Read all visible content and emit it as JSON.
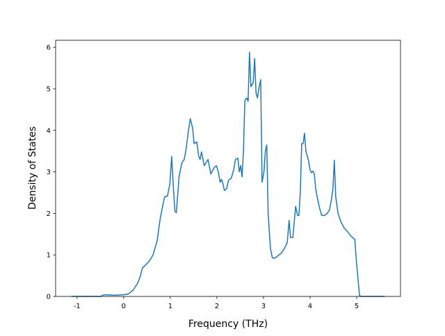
{
  "chart_data": {
    "type": "line",
    "xlabel": "Frequency (THz)",
    "ylabel": "Density of States",
    "xlim": [
      -1.46,
      5.94
    ],
    "ylim": [
      0,
      6.17
    ],
    "xticks": [
      -1,
      0,
      1,
      2,
      3,
      4,
      5
    ],
    "yticks": [
      0,
      1,
      2,
      3,
      4,
      5,
      6
    ],
    "grid": false,
    "series": [
      {
        "name": "DOS",
        "color": "#1f77b4",
        "x": [
          -1.12,
          -0.5,
          -0.42,
          -0.2,
          0,
          0.1,
          0.2,
          0.3,
          0.36,
          0.4,
          0.48,
          0.55,
          0.63,
          0.72,
          0.78,
          0.84,
          0.88,
          0.94,
          0.99,
          1.03,
          1.07,
          1.1,
          1.13,
          1.19,
          1.25,
          1.3,
          1.34,
          1.39,
          1.43,
          1.48,
          1.51,
          1.57,
          1.61,
          1.64,
          1.67,
          1.73,
          1.81,
          1.87,
          1.94,
          1.99,
          2.03,
          2.07,
          2.1,
          2.13,
          2.16,
          2.21,
          2.25,
          2.31,
          2.36,
          2.4,
          2.45,
          2.48,
          2.51,
          2.54,
          2.57,
          2.6,
          2.64,
          2.67,
          2.7,
          2.73,
          2.78,
          2.81,
          2.84,
          2.87,
          2.9,
          2.94,
          2.97,
          3.01,
          3.04,
          3.07,
          3.1,
          3.15,
          3.19,
          3.24,
          3.31,
          3.39,
          3.46,
          3.51,
          3.55,
          3.58,
          3.63,
          3.69,
          3.73,
          3.76,
          3.79,
          3.82,
          3.85,
          3.88,
          3.91,
          3.96,
          4.0,
          4.03,
          4.06,
          4.09,
          4.12,
          4.16,
          4.21,
          4.25,
          4.31,
          4.37,
          4.42,
          4.46,
          4.49,
          4.52,
          4.55,
          4.6,
          4.66,
          4.73,
          4.81,
          4.88,
          4.93,
          4.96,
          4.99,
          5.03,
          5.06,
          5.1,
          5.6
        ],
        "values": [
          0,
          0,
          0.04,
          0.03,
          0.04,
          0.06,
          0.15,
          0.32,
          0.5,
          0.68,
          0.77,
          0.85,
          1.0,
          1.35,
          1.85,
          2.2,
          2.4,
          2.42,
          2.7,
          3.37,
          2.55,
          2.05,
          2.02,
          2.9,
          3.22,
          3.3,
          3.55,
          4.0,
          4.28,
          4.05,
          3.68,
          3.72,
          3.38,
          3.3,
          3.48,
          3.15,
          3.3,
          2.95,
          3.1,
          3.15,
          3.0,
          2.75,
          2.82,
          2.72,
          2.55,
          2.6,
          2.8,
          2.85,
          3.05,
          3.3,
          3.33,
          3.0,
          3.15,
          2.88,
          3.5,
          4.72,
          4.78,
          4.7,
          5.88,
          5.05,
          5.15,
          5.73,
          4.9,
          4.78,
          5.0,
          5.22,
          2.75,
          3.0,
          3.5,
          3.65,
          2.0,
          1.15,
          0.93,
          0.92,
          0.98,
          1.05,
          1.18,
          1.3,
          1.83,
          1.42,
          1.42,
          2.17,
          1.95,
          1.95,
          2.5,
          3.68,
          3.68,
          3.93,
          3.5,
          3.3,
          3.05,
          2.98,
          3.02,
          2.95,
          2.6,
          2.35,
          2.1,
          1.95,
          1.95,
          2.0,
          2.1,
          2.35,
          2.6,
          3.28,
          2.4,
          2.0,
          1.8,
          1.65,
          1.55,
          1.45,
          1.4,
          1.38,
          0.9,
          0.4,
          0.02,
          0,
          0
        ]
      }
    ]
  }
}
